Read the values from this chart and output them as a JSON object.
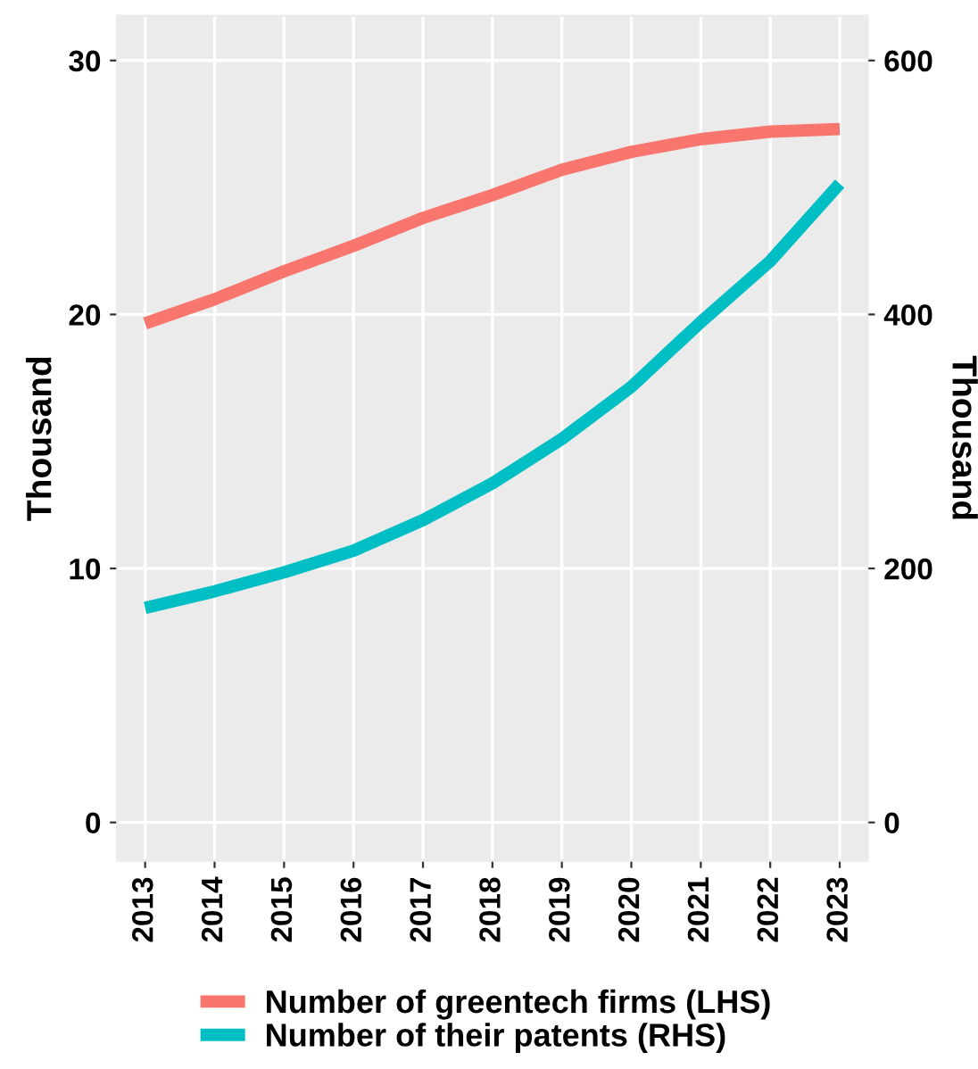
{
  "chart_data": {
    "type": "line",
    "ylabel": "Thousand",
    "y2label": "Thousand",
    "categories": [
      "2013",
      "2014",
      "2015",
      "2016",
      "2017",
      "2018",
      "2019",
      "2020",
      "2021",
      "2022",
      "2023"
    ],
    "series": [
      {
        "name": "Number of greentech firms (LHS)",
        "color": "#f8766d",
        "values": [
          19.65,
          20.6,
          21.7,
          22.7,
          23.8,
          24.7,
          25.7,
          26.4,
          26.9,
          27.2,
          27.3
        ]
      },
      {
        "name": "Number of their patents (RHS)",
        "color": "#00bfc4",
        "axis": "y2",
        "values": [
          169,
          182,
          197,
          214,
          238,
          267,
          302,
          343,
          394,
          442,
          503
        ]
      }
    ],
    "ylim": [
      -1.5,
      31.75
    ],
    "yticks": [
      0,
      10,
      20,
      30
    ],
    "y2lim": [
      -30,
      635
    ],
    "y2ticks": [
      0,
      200,
      400,
      600
    ],
    "grid": true,
    "legend": "bottom",
    "line_style": "solid",
    "marker": "none"
  }
}
